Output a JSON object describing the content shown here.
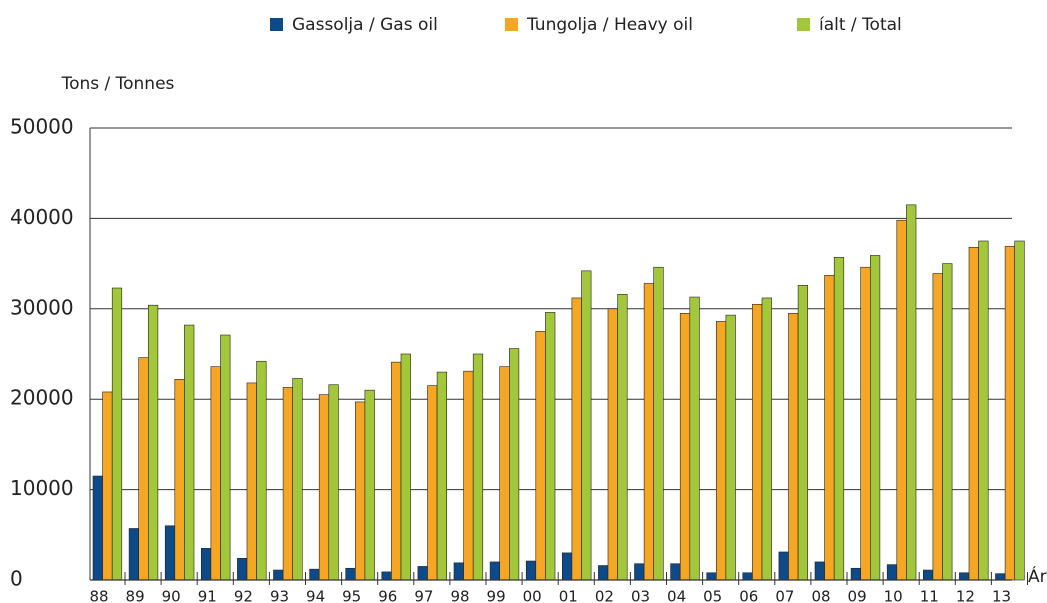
{
  "chart_data": {
    "type": "bar",
    "y_label": "Tons / Tonnes",
    "x_label": "Ár",
    "categories": [
      "88",
      "89",
      "90",
      "91",
      "92",
      "93",
      "94",
      "95",
      "96",
      "97",
      "98",
      "99",
      "00",
      "01",
      "02",
      "03",
      "04",
      "05",
      "06",
      "07",
      "08",
      "09",
      "10",
      "11",
      "12",
      "13"
    ],
    "series": [
      {
        "name": "Gassolja / Gas oil",
        "color": "#0d4a8a",
        "values": [
          11500,
          5700,
          6000,
          3500,
          2400,
          1100,
          1200,
          1300,
          900,
          1500,
          1900,
          2000,
          2100,
          3000,
          1600,
          1800,
          1800,
          800,
          800,
          3100,
          2000,
          1300,
          1700,
          1100,
          800,
          700
        ]
      },
      {
        "name": "Tungolja / Heavy oil",
        "color": "#f5a623",
        "values": [
          20800,
          24600,
          22200,
          23600,
          21800,
          21300,
          20500,
          19700,
          24100,
          21500,
          23100,
          23600,
          27500,
          31200,
          30000,
          32800,
          29500,
          28600,
          30500,
          29500,
          33700,
          34600,
          39800,
          33900,
          36800,
          36900
        ]
      },
      {
        "name": "íalt / Total",
        "color": "#a2c73b",
        "values": [
          32300,
          30400,
          28200,
          27100,
          24200,
          22300,
          21600,
          21000,
          25000,
          23000,
          25000,
          25600,
          29600,
          34200,
          31600,
          34600,
          31300,
          29300,
          31200,
          32600,
          35700,
          35900,
          41500,
          35000,
          37500,
          37500
        ]
      }
    ],
    "ylim": [
      0,
      50000
    ],
    "yticks": [
      0,
      10000,
      20000,
      30000,
      40000,
      50000
    ],
    "grid": true
  }
}
